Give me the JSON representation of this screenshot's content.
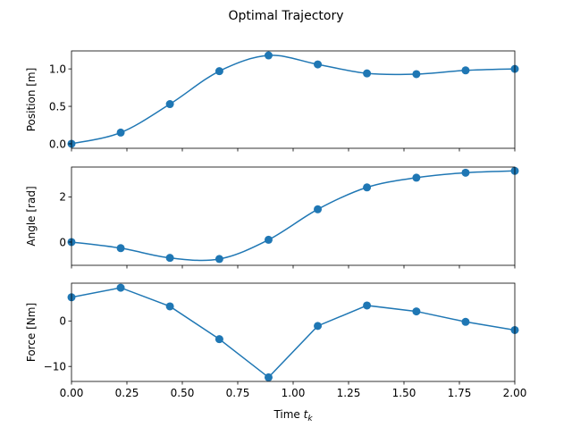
{
  "figure": {
    "title": "Optimal Trajectory"
  },
  "chart_data": [
    {
      "type": "line",
      "ylabel": "Position [m]",
      "xlim": [
        0,
        2
      ],
      "ylim": [
        -0.06,
        1.24
      ],
      "yticks": [
        0.0,
        0.5,
        1.0
      ],
      "ytick_labels": [
        "0.0",
        "0.5",
        "1.0"
      ],
      "color": "#1f77b4",
      "x": [
        0.0,
        0.222,
        0.444,
        0.667,
        0.889,
        1.111,
        1.333,
        1.556,
        1.778,
        2.0
      ],
      "y": [
        0.0,
        0.15,
        0.53,
        0.97,
        1.18,
        1.06,
        0.94,
        0.93,
        0.98,
        1.0
      ],
      "curve": "smooth"
    },
    {
      "type": "line",
      "ylabel": "Angle [rad]",
      "xlim": [
        0,
        2
      ],
      "ylim": [
        -1.03,
        3.32
      ],
      "yticks": [
        0,
        2
      ],
      "ytick_labels": [
        "0",
        "2"
      ],
      "color": "#1f77b4",
      "x": [
        0.0,
        0.222,
        0.444,
        0.667,
        0.889,
        1.111,
        1.333,
        1.556,
        1.778,
        2.0
      ],
      "y": [
        0.0,
        -0.27,
        -0.7,
        -0.75,
        0.1,
        1.45,
        2.42,
        2.85,
        3.07,
        3.15
      ],
      "curve": "smooth"
    },
    {
      "type": "line",
      "ylabel": "Force [Nm]",
      "xlabel": "Time",
      "xlabel_sub": "k",
      "xlim": [
        0,
        2
      ],
      "ylim": [
        -13.3,
        8.3
      ],
      "yticks": [
        0,
        -10
      ],
      "ytick_labels": [
        "0",
        "−10"
      ],
      "xticks": [
        0.0,
        0.25,
        0.5,
        0.75,
        1.0,
        1.25,
        1.5,
        1.75,
        2.0
      ],
      "xtick_labels": [
        "0.00",
        "0.25",
        "0.50",
        "0.75",
        "1.00",
        "1.25",
        "1.50",
        "1.75",
        "2.00"
      ],
      "color": "#1f77b4",
      "x": [
        0.0,
        0.222,
        0.444,
        0.667,
        0.889,
        1.111,
        1.333,
        1.556,
        1.778,
        2.0
      ],
      "y": [
        5.2,
        7.3,
        3.2,
        -4.0,
        -12.4,
        -1.1,
        3.4,
        2.1,
        -0.2,
        -2.0
      ],
      "curve": "linear"
    }
  ]
}
